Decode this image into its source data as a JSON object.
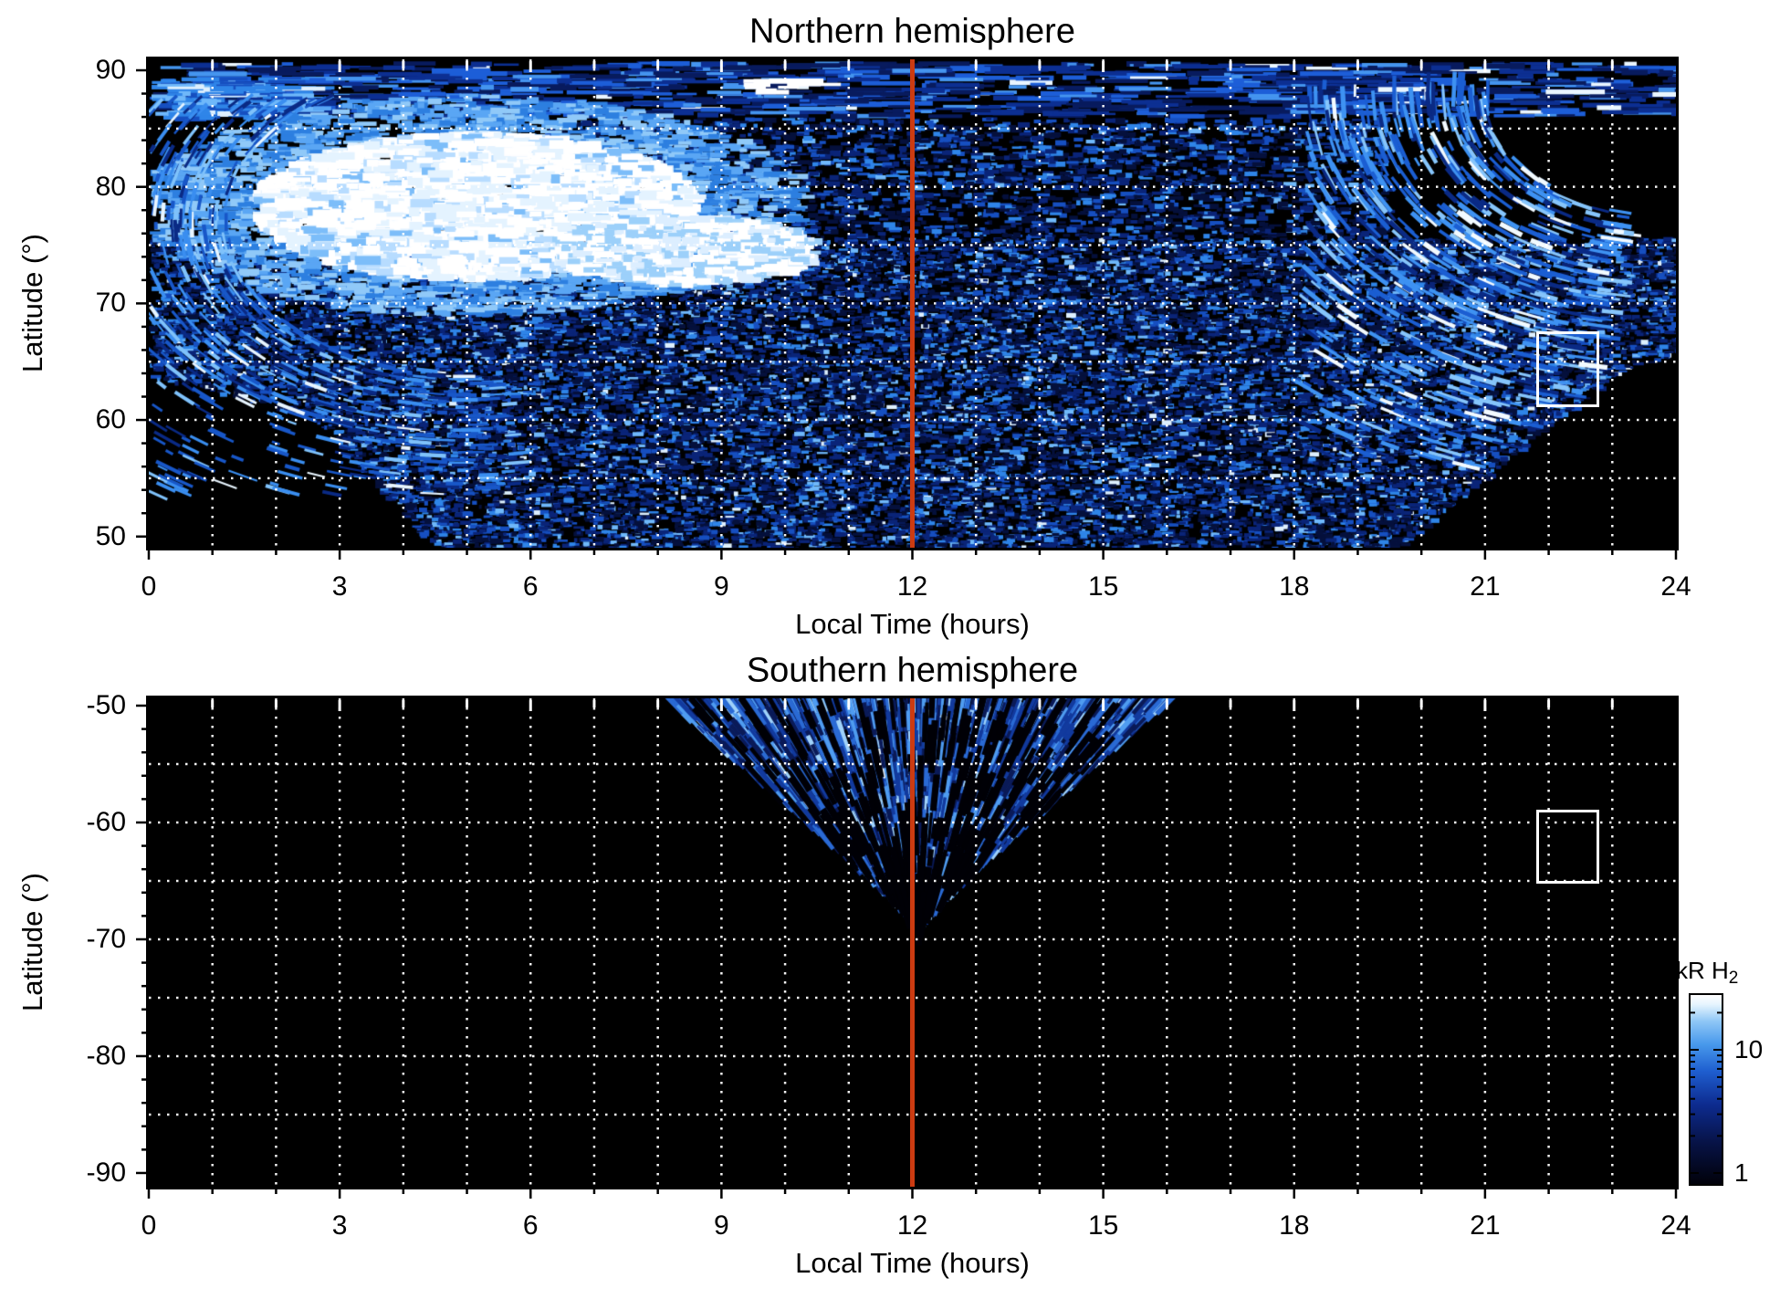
{
  "figure": {
    "background": "#ffffff",
    "plot_background": "#000000",
    "grid_color": "#ffffff",
    "noon_line_color": "#cc3b11",
    "roi_box_color": "#ffffff"
  },
  "chart_data": {
    "type": "heatmap",
    "x_axis": {
      "label": "Local Time (hours)",
      "range": [
        0,
        24
      ],
      "tick_values": [
        0,
        3,
        6,
        9,
        12,
        15,
        18,
        21,
        24
      ],
      "tick_labels": [
        "0",
        "3",
        "6",
        "9",
        "12",
        "15",
        "18",
        "21",
        "24"
      ],
      "minor_tick_step_hours": 1,
      "grid_step_hours": 1
    },
    "panels": [
      {
        "id": "north",
        "title": "Northern hemisphere",
        "ylabel": "Latitude (°)",
        "y_range": [
          49.1,
          90.9
        ],
        "y_tick_values": [
          90,
          80,
          70,
          60,
          50
        ],
        "y_tick_labels": [
          "90",
          "80",
          "70",
          "60",
          "50"
        ],
        "y_minor_tick_step_deg": 2,
        "grid_lat_lines": [
          85,
          80,
          75,
          70,
          65,
          60,
          55
        ],
        "noon_line_hour": 12,
        "roi_box": {
          "hours": [
            21.8,
            22.8
          ],
          "lat": [
            61.1,
            67.6
          ]
        },
        "features": [
          {
            "name": "bright-dawn-patch",
            "desc": "very bright saturated emission (>20 kR, white)",
            "local_time_hours": [
              1.5,
              8.8
            ],
            "latitude_deg": [
              72,
              85
            ]
          },
          {
            "name": "dawn-arc-streaks",
            "desc": "curved arc streaks wrapping the bright patch",
            "local_time_hours": [
              0,
              10.5
            ],
            "latitude_deg": [
              54,
              87
            ]
          },
          {
            "name": "speckled-emission-dome",
            "desc": "patchy 1-10 kR emission filling a dome toward noon",
            "local_time_hours": [
              4.3,
              19.8
            ],
            "latitude_deg": [
              50,
              75
            ]
          },
          {
            "name": "dusk-arc-band",
            "desc": "bright curved streak band near dusk/right edge",
            "local_time_hours": [
              18.3,
              24
            ],
            "latitude_deg": [
              56,
              88
            ]
          },
          {
            "name": "polar-cap-streaks",
            "desc": "thin horizontal streaks along the top edge",
            "local_time_hours": [
              0,
              24
            ],
            "latitude_deg": [
              86,
              90.5
            ]
          },
          {
            "name": "no-data-corners",
            "desc": "black (no emission) lower corners",
            "corners": [
              "0-4.3 h below ~68°",
              "20-24 h below ~68°"
            ]
          }
        ]
      },
      {
        "id": "south",
        "title": "Southern hemisphere",
        "ylabel": "Latitude (°)",
        "y_range": [
          -91.2,
          -49.4
        ],
        "y_tick_values": [
          -50,
          -60,
          -70,
          -80,
          -90
        ],
        "y_tick_labels": [
          "-50",
          "-60",
          "-70",
          "-80",
          "-90"
        ],
        "y_minor_tick_step_deg": 2,
        "grid_lat_lines": [
          -55,
          -60,
          -65,
          -70,
          -75,
          -80,
          -85
        ],
        "noon_line_hour": 12,
        "roi_box": {
          "hours": [
            21.8,
            22.8
          ],
          "lat": [
            -65.2,
            -58.9
          ]
        },
        "features": [
          {
            "name": "noon-fan",
            "desc": "fan of radial bright streaks converging near 12 h, -71°",
            "local_time_hours": [
              8.2,
              16.2
            ],
            "latitude_deg": [
              -68,
              -49.5
            ]
          },
          {
            "name": "no-data",
            "desc": "black everywhere else"
          }
        ]
      }
    ],
    "colorbar": {
      "label_prefix": "kR H",
      "label_subscript": "2",
      "scale": "log",
      "range_kR": [
        1,
        30
      ],
      "tick_labels": [
        "10",
        "1"
      ],
      "gradient_bottom_to_top": [
        "#01010a",
        "#071347",
        "#0d2b8f",
        "#1f5fd0",
        "#4899ec",
        "#8ec6f6",
        "#e6f4fe",
        "#ffffff"
      ]
    }
  }
}
